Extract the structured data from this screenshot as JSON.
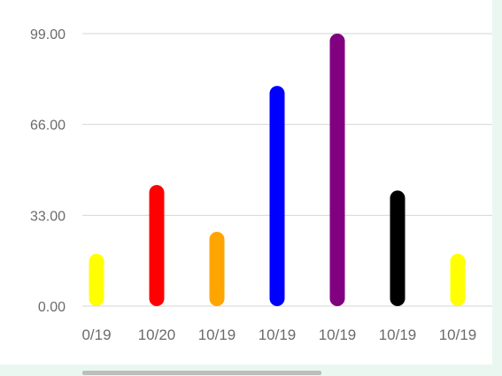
{
  "chart_data": {
    "type": "bar",
    "categories": [
      "0/19",
      "10/20",
      "10/19",
      "10/19",
      "10/19",
      "10/19",
      "10/19"
    ],
    "values": [
      19,
      44,
      27,
      80,
      99,
      42,
      19
    ],
    "colors": [
      "#ffff00",
      "#ff0000",
      "#ffa500",
      "#0000ff",
      "#800080",
      "#000000",
      "#ffff00"
    ],
    "yticks": [
      "0.00",
      "33.00",
      "66.00",
      "99.00"
    ],
    "ylim": [
      0,
      99
    ],
    "grid": true,
    "scrollbar": true
  }
}
